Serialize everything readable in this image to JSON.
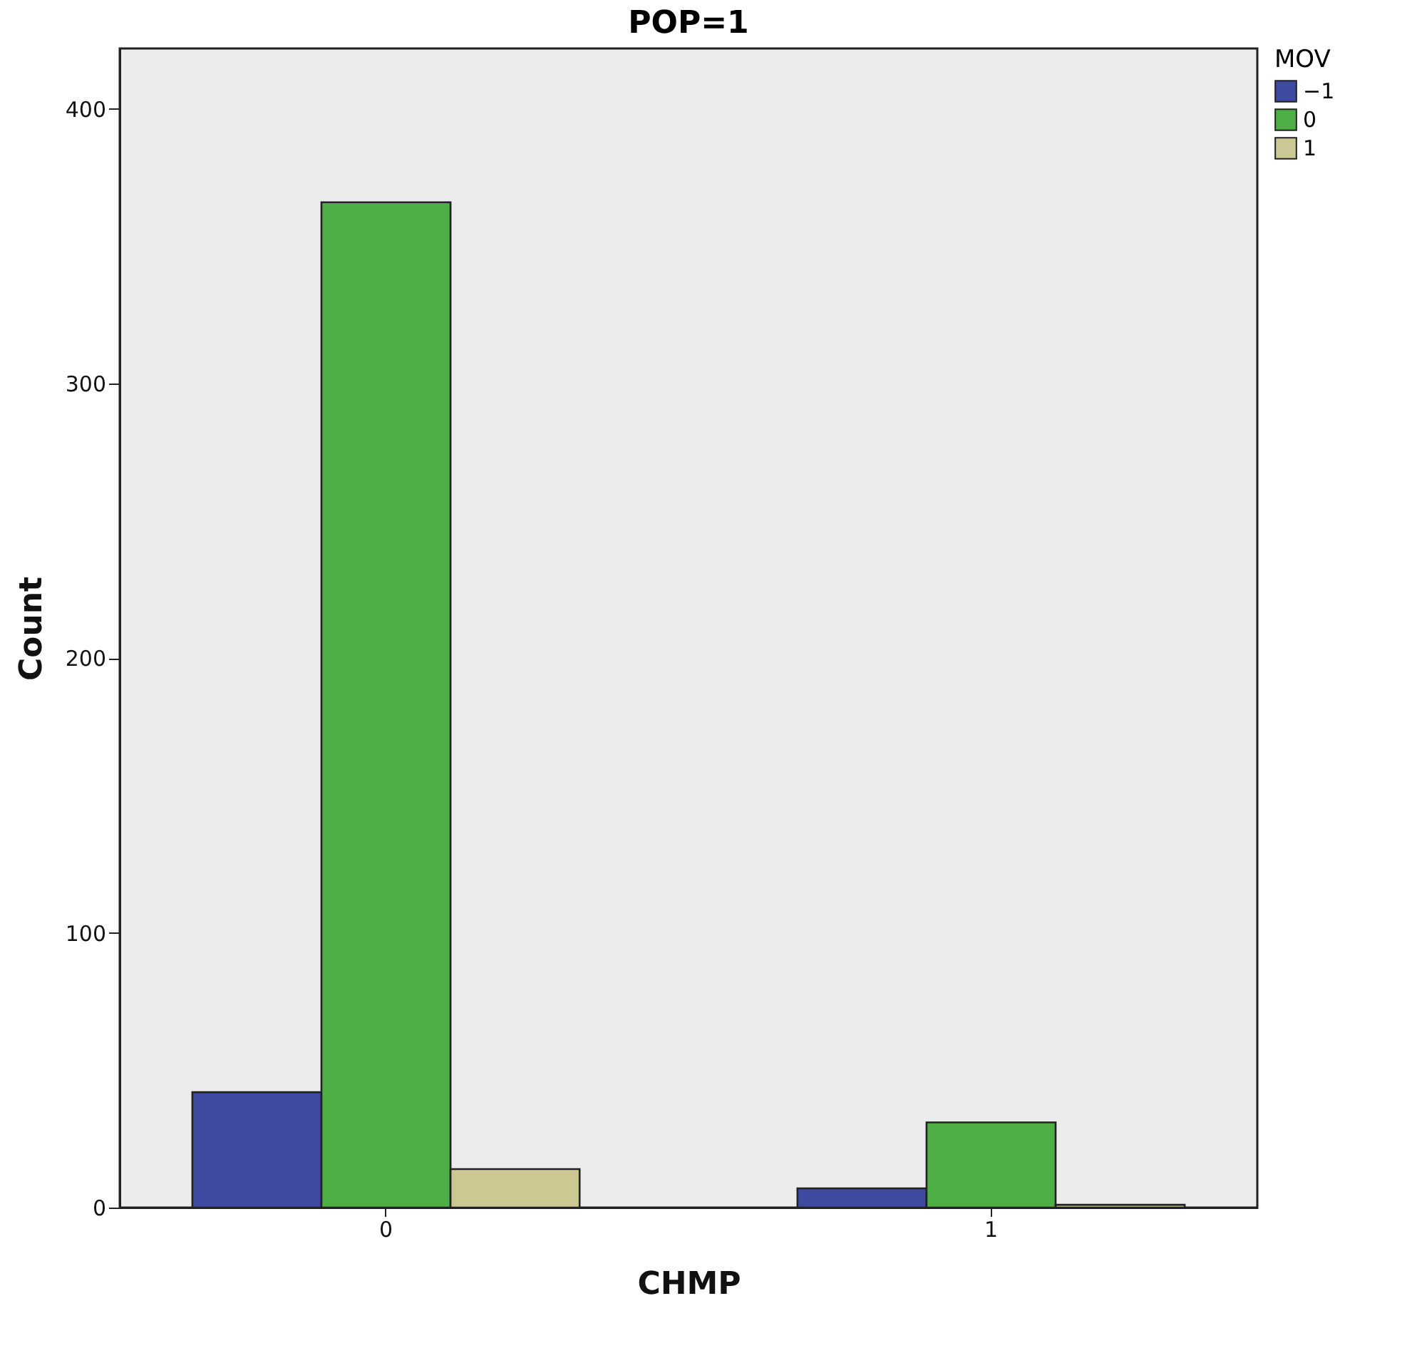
{
  "chart_data": {
    "type": "bar",
    "title": "POP=1",
    "xlabel": "CHMP",
    "ylabel": "Count",
    "legend_title": "MOV",
    "categories": [
      "0",
      "1"
    ],
    "series": [
      {
        "name": "−1",
        "color": "#3d4aa0",
        "values": [
          42,
          7
        ]
      },
      {
        "name": "0",
        "color": "#4daf46",
        "values": [
          366,
          31
        ]
      },
      {
        "name": "1",
        "color": "#cbc893",
        "values": [
          14,
          1
        ]
      }
    ],
    "ylim": [
      0,
      422
    ],
    "yticks": [
      0,
      100,
      200,
      300,
      400
    ],
    "grid": false,
    "legend": "top right"
  }
}
